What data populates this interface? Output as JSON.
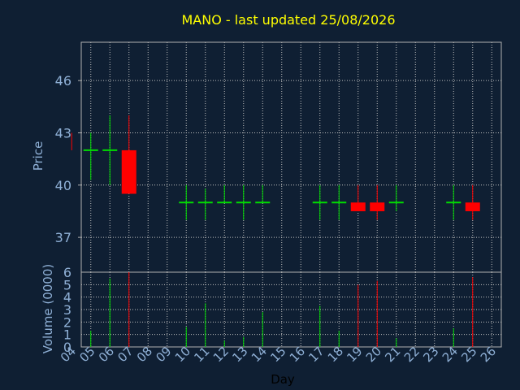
{
  "chart_data": [
    {
      "type": "candlestick",
      "title": "MANO - last updated 25/08/2026",
      "ylabel": "Price",
      "ylim": [
        35,
        48.2
      ],
      "yticks": [
        37,
        40,
        43,
        46
      ],
      "grid": true,
      "up_color": "#00dd00",
      "down_color": "#ff0000",
      "candles": [
        {
          "day": 4,
          "open": 43.0,
          "high": 43.0,
          "low": 42.0,
          "close": 42.0
        },
        {
          "day": 5,
          "open": 42.0,
          "high": 43.0,
          "low": 40.3,
          "close": 42.0
        },
        {
          "day": 6,
          "open": 42.0,
          "high": 44.0,
          "low": 40.0,
          "close": 42.0
        },
        {
          "day": 7,
          "open": 42.0,
          "high": 44.0,
          "low": 39.5,
          "close": 39.5
        },
        {
          "day": 10,
          "open": 39.0,
          "high": 40.0,
          "low": 38.0,
          "close": 39.0
        },
        {
          "day": 11,
          "open": 39.0,
          "high": 39.8,
          "low": 38.0,
          "close": 39.0
        },
        {
          "day": 12,
          "open": 39.0,
          "high": 40.0,
          "low": 39.0,
          "close": 39.0
        },
        {
          "day": 13,
          "open": 39.0,
          "high": 40.0,
          "low": 38.0,
          "close": 39.0
        },
        {
          "day": 14,
          "open": 39.0,
          "high": 40.0,
          "low": 39.0,
          "close": 39.0
        },
        {
          "day": 17,
          "open": 39.0,
          "high": 40.0,
          "low": 38.0,
          "close": 39.0
        },
        {
          "day": 18,
          "open": 39.0,
          "high": 40.0,
          "low": 38.0,
          "close": 39.0
        },
        {
          "day": 19,
          "open": 39.0,
          "high": 40.0,
          "low": 38.5,
          "close": 38.5
        },
        {
          "day": 20,
          "open": 39.0,
          "high": 40.0,
          "low": 38.0,
          "close": 38.5
        },
        {
          "day": 21,
          "open": 39.0,
          "high": 40.0,
          "low": 38.5,
          "close": 39.0
        },
        {
          "day": 24,
          "open": 39.0,
          "high": 40.0,
          "low": 38.0,
          "close": 39.0
        },
        {
          "day": 25,
          "open": 39.0,
          "high": 40.0,
          "low": 38.0,
          "close": 38.5
        }
      ]
    },
    {
      "type": "bar",
      "ylabel": "Volume (0000)",
      "xlabel": "Day",
      "ylim": [
        0,
        6
      ],
      "yticks": [
        0,
        1,
        2,
        3,
        4,
        5,
        6
      ],
      "xticks": [
        "04",
        "05",
        "06",
        "07",
        "08",
        "09",
        "10",
        "11",
        "12",
        "13",
        "14",
        "15",
        "16",
        "17",
        "18",
        "19",
        "20",
        "21",
        "22",
        "23",
        "24",
        "25",
        "26"
      ],
      "volumes": [
        {
          "day": 5,
          "value": 1.3,
          "direction": "up"
        },
        {
          "day": 6,
          "value": 5.5,
          "direction": "up"
        },
        {
          "day": 7,
          "value": 6.0,
          "direction": "down"
        },
        {
          "day": 10,
          "value": 1.6,
          "direction": "up"
        },
        {
          "day": 11,
          "value": 3.5,
          "direction": "up"
        },
        {
          "day": 12,
          "value": 0.5,
          "direction": "up"
        },
        {
          "day": 13,
          "value": 0.8,
          "direction": "up"
        },
        {
          "day": 14,
          "value": 2.8,
          "direction": "up"
        },
        {
          "day": 17,
          "value": 3.3,
          "direction": "up"
        },
        {
          "day": 18,
          "value": 1.3,
          "direction": "up"
        },
        {
          "day": 19,
          "value": 5.0,
          "direction": "down"
        },
        {
          "day": 20,
          "value": 5.3,
          "direction": "down"
        },
        {
          "day": 21,
          "value": 0.7,
          "direction": "up"
        },
        {
          "day": 24,
          "value": 1.5,
          "direction": "up"
        },
        {
          "day": 25,
          "value": 5.6,
          "direction": "down"
        }
      ]
    }
  ],
  "colors": {
    "background": "#0f1f33",
    "title": "#ffff00",
    "axis_text": "#8fb0d6",
    "xlabel": "#000000",
    "grid": "#c0c0c0",
    "frame": "#b0b0b0"
  }
}
